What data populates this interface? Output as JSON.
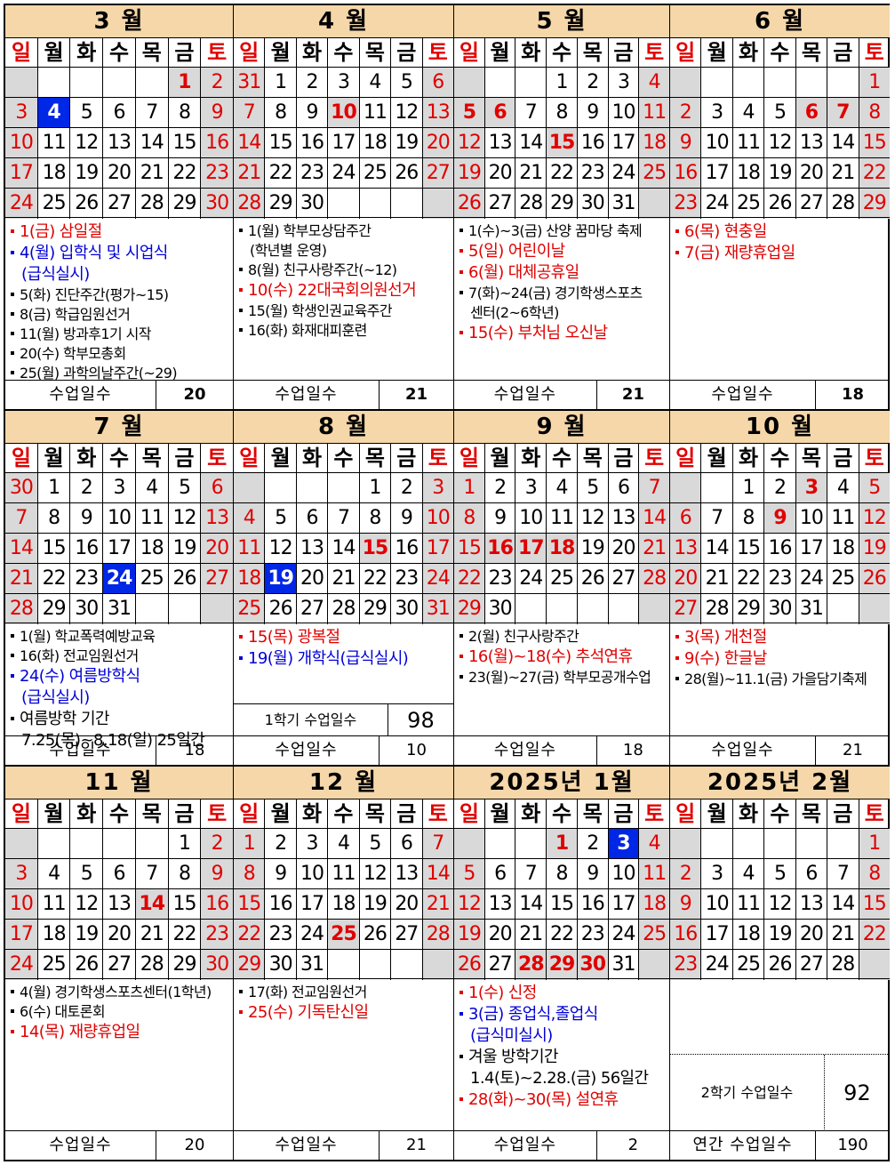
{
  "weekdays": [
    "일",
    "월",
    "화",
    "수",
    "목",
    "금",
    "토"
  ],
  "days_label": "수업일수",
  "months": [
    {
      "title": "3 월",
      "start": 5,
      "days": 31,
      "hol": [
        1
      ],
      "hi": [
        4
      ],
      "days_count": "20",
      "foot_bold": true,
      "events": [
        {
          "t": "1(금) 삼일절",
          "c": "red",
          "big": true
        },
        {
          "t": "4(월) 입학식 및 시업식",
          "c": "blue",
          "big": true
        },
        {
          "t": "(급식실시)",
          "c": "blue",
          "big": true,
          "ind": true,
          "nb": true
        },
        {
          "t": "5(화) 진단주간(평가~15)",
          "c": "black"
        },
        {
          "t": "8(금) 학급임원선거",
          "c": "black"
        },
        {
          "t": "11(월) 방과후1기 시작",
          "c": "black"
        },
        {
          "t": "20(수) 학부모총회",
          "c": "black"
        },
        {
          "t": "25(월) 과학의날주간(~29)",
          "c": "black"
        }
      ]
    },
    {
      "title": "4 월",
      "start": 1,
      "days": 30,
      "prev": [
        31
      ],
      "hol": [
        10
      ],
      "hi": [],
      "days_count": "21",
      "foot_bold": true,
      "events": [
        {
          "t": "1(월) 학부모상담주간",
          "c": "black"
        },
        {
          "t": "(학년별 운영)",
          "c": "black",
          "ind": true,
          "nb": true
        },
        {
          "t": "8(월) 친구사랑주간(~12)",
          "c": "black"
        },
        {
          "t": "10(수) 22대국회의원선거",
          "c": "red",
          "big": true
        },
        {
          "t": "15(월) 학생인권교육주간",
          "c": "black"
        },
        {
          "t": "16(화) 화재대피훈련",
          "c": "black"
        }
      ]
    },
    {
      "title": "5 월",
      "start": 3,
      "days": 31,
      "hol": [
        5,
        6,
        15
      ],
      "hi": [],
      "days_count": "21",
      "foot_bold": true,
      "events": [
        {
          "t": "1(수)~3(금) 산양 꿈마당 축제",
          "c": "black"
        },
        {
          "t": "5(일) 어린이날",
          "c": "red",
          "big": true
        },
        {
          "t": "6(월) 대체공휴일",
          "c": "red",
          "big": true
        },
        {
          "t": "7(화)~24(금) 경기학생스포츠",
          "c": "black"
        },
        {
          "t": "센터(2~6학년)",
          "c": "black",
          "ind": true,
          "nb": true
        },
        {
          "t": "15(수) 부처님 오신날",
          "c": "red",
          "big": true
        }
      ]
    },
    {
      "title": "6 월",
      "start": 6,
      "days": 30,
      "hol": [
        6,
        7
      ],
      "hi": [],
      "days_count": "18",
      "foot_bold": true,
      "events": [
        {
          "t": "6(목) 현충일",
          "c": "red",
          "big": true
        },
        {
          "t": "7(금) 재량휴업일",
          "c": "red",
          "big": true
        }
      ]
    },
    {
      "title": "7 월",
      "start": 1,
      "days": 31,
      "prev": [
        30
      ],
      "hol": [],
      "hi": [
        24
      ],
      "days_count": "18",
      "foot_bold": false,
      "events": [
        {
          "t": "1(월) 학교폭력예방교육",
          "c": "black"
        },
        {
          "t": "16(화) 전교임원선거",
          "c": "black"
        },
        {
          "t": "24(수) 여름방학식",
          "c": "blue",
          "big": true
        },
        {
          "t": "(급식실시)",
          "c": "blue",
          "big": true,
          "ind": true,
          "nb": true
        },
        {
          "t": "여름방학 기간",
          "c": "black",
          "big": true
        },
        {
          "t": "7.25(목)~8.18(일) 25일간",
          "c": "black",
          "big": true,
          "nb": true
        }
      ]
    },
    {
      "title": "8 월",
      "start": 4,
      "days": 31,
      "hol": [
        15
      ],
      "hi": [
        19
      ],
      "days_count": "10",
      "foot_bold": false,
      "semester": {
        "label": "1학기 수업일수",
        "value": "98"
      },
      "events": [
        {
          "t": "15(목) 광복절",
          "c": "red",
          "big": true
        },
        {
          "t": "19(월) 개학식(급식실시)",
          "c": "blue",
          "big": true
        }
      ]
    },
    {
      "title": "9 월",
      "start": 0,
      "days": 30,
      "hol": [
        16,
        17,
        18
      ],
      "hi": [],
      "days_count": "18",
      "foot_bold": false,
      "events": [
        {
          "t": "2(월) 친구사랑주간",
          "c": "black"
        },
        {
          "t": "16(월)~18(수) 추석연휴",
          "c": "red",
          "big": true
        },
        {
          "t": "23(월)~27(금) 학부모공개수업",
          "c": "black"
        }
      ]
    },
    {
      "title": "10 월",
      "start": 2,
      "days": 31,
      "hol": [
        3,
        9
      ],
      "hi": [],
      "days_count": "21",
      "foot_bold": false,
      "events": [
        {
          "t": "3(목) 개천절",
          "c": "red",
          "big": true
        },
        {
          "t": "9(수) 한글날",
          "c": "red",
          "big": true
        },
        {
          "t": "28(월)~11.1(금) 가을담기축제",
          "c": "black"
        }
      ]
    },
    {
      "title": "11 월",
      "start": 5,
      "days": 30,
      "hol": [
        14
      ],
      "hi": [],
      "days_count": "20",
      "foot_bold": false,
      "events": [
        {
          "t": "4(월) 경기학생스포츠센터(1학년)",
          "c": "black"
        },
        {
          "t": "6(수) 대토론회",
          "c": "black"
        },
        {
          "t": "14(목) 재량휴업일",
          "c": "red",
          "big": true
        }
      ]
    },
    {
      "title": "12 월",
      "start": 0,
      "days": 31,
      "hol": [
        25
      ],
      "hi": [],
      "days_count": "21",
      "foot_bold": false,
      "events": [
        {
          "t": "17(화) 전교임원선거",
          "c": "black"
        },
        {
          "t": "25(수) 기독탄신일",
          "c": "red",
          "big": true
        }
      ]
    },
    {
      "title": "2025년 1월",
      "start": 3,
      "days": 31,
      "hol": [
        1,
        28,
        29,
        30
      ],
      "hi": [
        3
      ],
      "days_count": "2",
      "foot_bold": false,
      "events": [
        {
          "t": "1(수) 신정",
          "c": "red",
          "big": true
        },
        {
          "t": "3(금) 종업식,졸업식",
          "c": "blue",
          "big": true
        },
        {
          "t": "(급식미실시)",
          "c": "blue",
          "big": true,
          "nb": true
        },
        {
          "t": "겨울 방학기간",
          "c": "black",
          "big": true
        },
        {
          "t": "1.4(토)~2.28.(금) 56일간",
          "c": "black",
          "big": true,
          "nb": true
        },
        {
          "t": "28(화)~30(목) 설연휴",
          "c": "red",
          "big": true
        }
      ]
    },
    {
      "title": "2025년 2월",
      "start": 6,
      "days": 28,
      "hol": [],
      "hi": [],
      "days_count": "190",
      "foot_label": "연간 수업일수",
      "foot_bold": false,
      "semester": {
        "label": "2학기 수업일수",
        "value": "92"
      },
      "events": []
    }
  ]
}
